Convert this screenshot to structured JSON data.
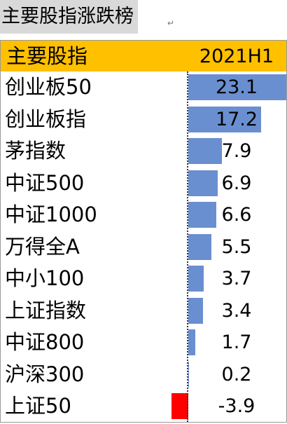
{
  "document": {
    "title": "主要股指涨跌榜"
  },
  "table": {
    "header": {
      "name": "主要股指",
      "period": "2021H1"
    },
    "rows": [
      {
        "name": "创业板50",
        "value": "23.1"
      },
      {
        "name": "创业板指",
        "value": "17.2"
      },
      {
        "name": "茅指数",
        "value": "7.9"
      },
      {
        "name": "中证500",
        "value": "6.9"
      },
      {
        "name": "中证1000",
        "value": "6.6"
      },
      {
        "name": "万得全A",
        "value": "5.5"
      },
      {
        "name": "中小100",
        "value": "3.7"
      },
      {
        "name": "上证指数",
        "value": "3.4"
      },
      {
        "name": "中证800",
        "value": "1.7"
      },
      {
        "name": "沪深300",
        "value": "0.2"
      },
      {
        "name": "上证50",
        "value": "-3.9"
      }
    ]
  },
  "colors": {
    "header_bg": "#ffc000",
    "positive_bar": "#6a8fd0",
    "negative_bar": "#ff0000"
  }
}
